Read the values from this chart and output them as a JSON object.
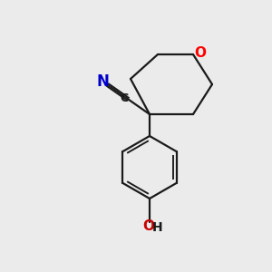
{
  "background_color": "#ebebeb",
  "bond_color": "#1a1a1a",
  "atom_colors": {
    "O": "#ff0000",
    "N": "#0000cc",
    "C": "#1a1a1a",
    "OH_O": "#cc0000",
    "OH_H": "#1a1a1a"
  },
  "figsize": [
    3.0,
    3.0
  ],
  "dpi": 100
}
